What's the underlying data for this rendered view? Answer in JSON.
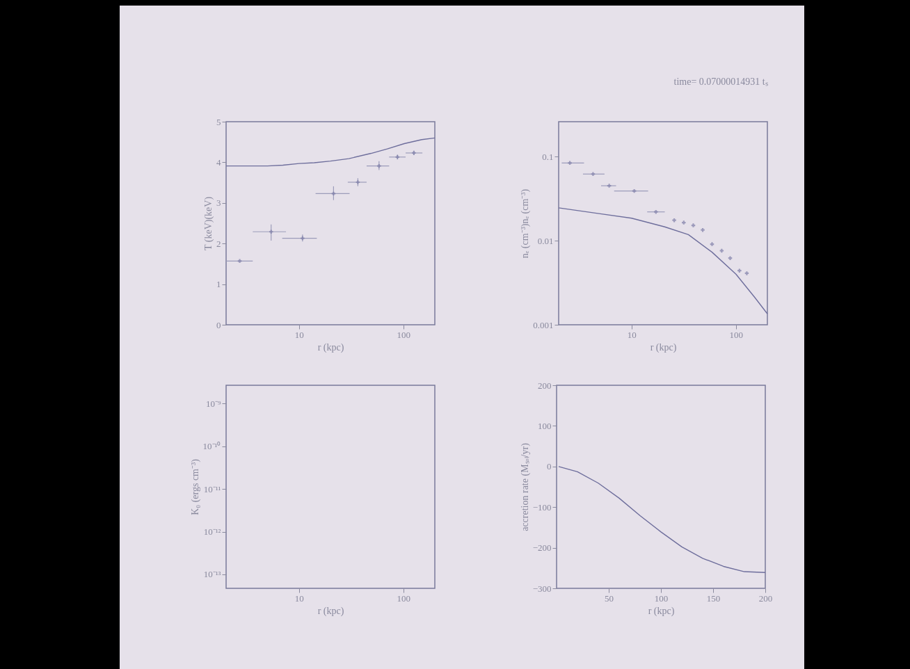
{
  "chart_data": [
    {
      "type": "line",
      "xlabel": "r (kpc)",
      "ylabel": "T (keV)(keV)",
      "log": "x",
      "xlim": [
        2,
        200
      ],
      "xticks": [
        10,
        100
      ],
      "ylim": [
        0,
        5
      ],
      "yticks": [
        0,
        1,
        2,
        3,
        4,
        5
      ],
      "marker": "none",
      "series": [
        {
          "color": "#6e6e9c",
          "x": [
            2,
            5,
            7,
            10,
            14,
            20,
            30,
            49,
            70,
            102,
            150,
            200
          ],
          "values": [
            3.91,
            3.91,
            3.93,
            3.97,
            3.99,
            4.03,
            4.09,
            4.22,
            4.33,
            4.46,
            4.56,
            4.6
          ]
        },
        {
          "type": "scatter",
          "marker": "cross",
          "color": "#9c9cba",
          "x": [
            2.7,
            5.4,
            10.8,
            21.4,
            36.6,
            58.4,
            87.7,
            126
          ],
          "values": [
            1.57,
            2.29,
            2.13,
            3.23,
            3.51,
            3.91,
            4.13,
            4.23
          ],
          "xerrors": [
            [
              2,
              3.6
            ],
            [
              3.6,
              7.5
            ],
            [
              6.9,
              14.8
            ],
            [
              14.4,
              30.5
            ],
            [
              29.3,
              44.4
            ],
            [
              44.4,
              73
            ],
            [
              73,
              105
            ],
            [
              105,
              152
            ]
          ],
          "errors": [
            null,
            [
              2.07,
              2.47
            ],
            [
              2.05,
              2.22
            ],
            [
              3.07,
              3.41
            ],
            [
              3.41,
              3.61
            ],
            [
              3.81,
              4.03
            ],
            [
              4.07,
              4.19
            ],
            [
              4.18,
              4.29
            ]
          ]
        }
      ]
    },
    {
      "type": "line",
      "title": "time= 0.07000014931 tₛ",
      "xlabel": "r (kpc)",
      "ylabel": "nₑ (cm⁻³)nₑ (cm⁻³)",
      "log": "xy",
      "xlim": [
        2,
        200
      ],
      "xticks": [
        10,
        100
      ],
      "ylim": [
        0.001,
        0.26
      ],
      "yticks": [
        0.001,
        0.01,
        0.1
      ],
      "marker": "none",
      "series": [
        {
          "color": "#6e6e9c",
          "x": [
            2,
            5,
            10,
            20.8,
            35,
            59,
            100,
            152,
            200
          ],
          "values": [
            0.0246,
            0.0209,
            0.0185,
            0.0146,
            0.0118,
            0.0073,
            0.004,
            0.0021,
            0.00135
          ]
        },
        {
          "type": "scatter",
          "marker": "cross",
          "color": "#9c9cba",
          "x": [
            2.56,
            4.27,
            6.1,
            10.6,
            17.1,
            25.6,
            31.6,
            39,
            48,
            59,
            73,
            88,
            108,
            127
          ],
          "values": [
            0.084,
            0.062,
            0.045,
            0.039,
            0.022,
            0.0175,
            0.0164,
            0.0152,
            0.0134,
            0.0091,
            0.0076,
            0.0062,
            0.0044,
            0.0041
          ],
          "xerrors": [
            [
              2.14,
              3.5
            ],
            [
              3.42,
              5.5
            ],
            [
              5.1,
              7.1
            ],
            [
              6.8,
              14.4
            ],
            [
              14.1,
              20.8
            ],
            null,
            null,
            null,
            null,
            null,
            null,
            null,
            null,
            null
          ]
        }
      ]
    },
    {
      "type": "line",
      "xlabel": "r (kpc)",
      "ylabel": "K₀ (ergs cm⁻³)",
      "log": "xy",
      "xlim": [
        2,
        200
      ],
      "xticks": [
        10,
        100
      ],
      "ylim": [
        4.7e-14,
        2.7e-09
      ],
      "yticks": [
        {
          "value": 1e-09,
          "label": "10⁻⁹"
        },
        {
          "value": 1e-10,
          "label": "10⁻¹⁰"
        },
        {
          "value": 1e-11,
          "label": "10⁻¹¹"
        },
        {
          "value": 1e-12,
          "label": "10⁻¹²"
        },
        {
          "value": 1e-13,
          "label": "10⁻¹³"
        }
      ]
    },
    {
      "type": "line",
      "xlabel": "r (kpc)",
      "ylabel": "accretion rate (Mₛₒₗ/yr)",
      "xlim": [
        0,
        200
      ],
      "xticks": [
        50,
        100,
        150,
        200
      ],
      "ylim": [
        -300,
        200
      ],
      "yticks": [
        -300,
        -200,
        -100,
        0,
        100,
        200
      ],
      "marker": "none",
      "series": [
        {
          "color": "#6e6e9c",
          "x": [
            2,
            20,
            40,
            60,
            80,
            100,
            120,
            140,
            160,
            180,
            200
          ],
          "values": [
            0,
            -13,
            -41,
            -78,
            -121,
            -161,
            -198,
            -226,
            -246,
            -259,
            -261
          ]
        }
      ]
    }
  ]
}
